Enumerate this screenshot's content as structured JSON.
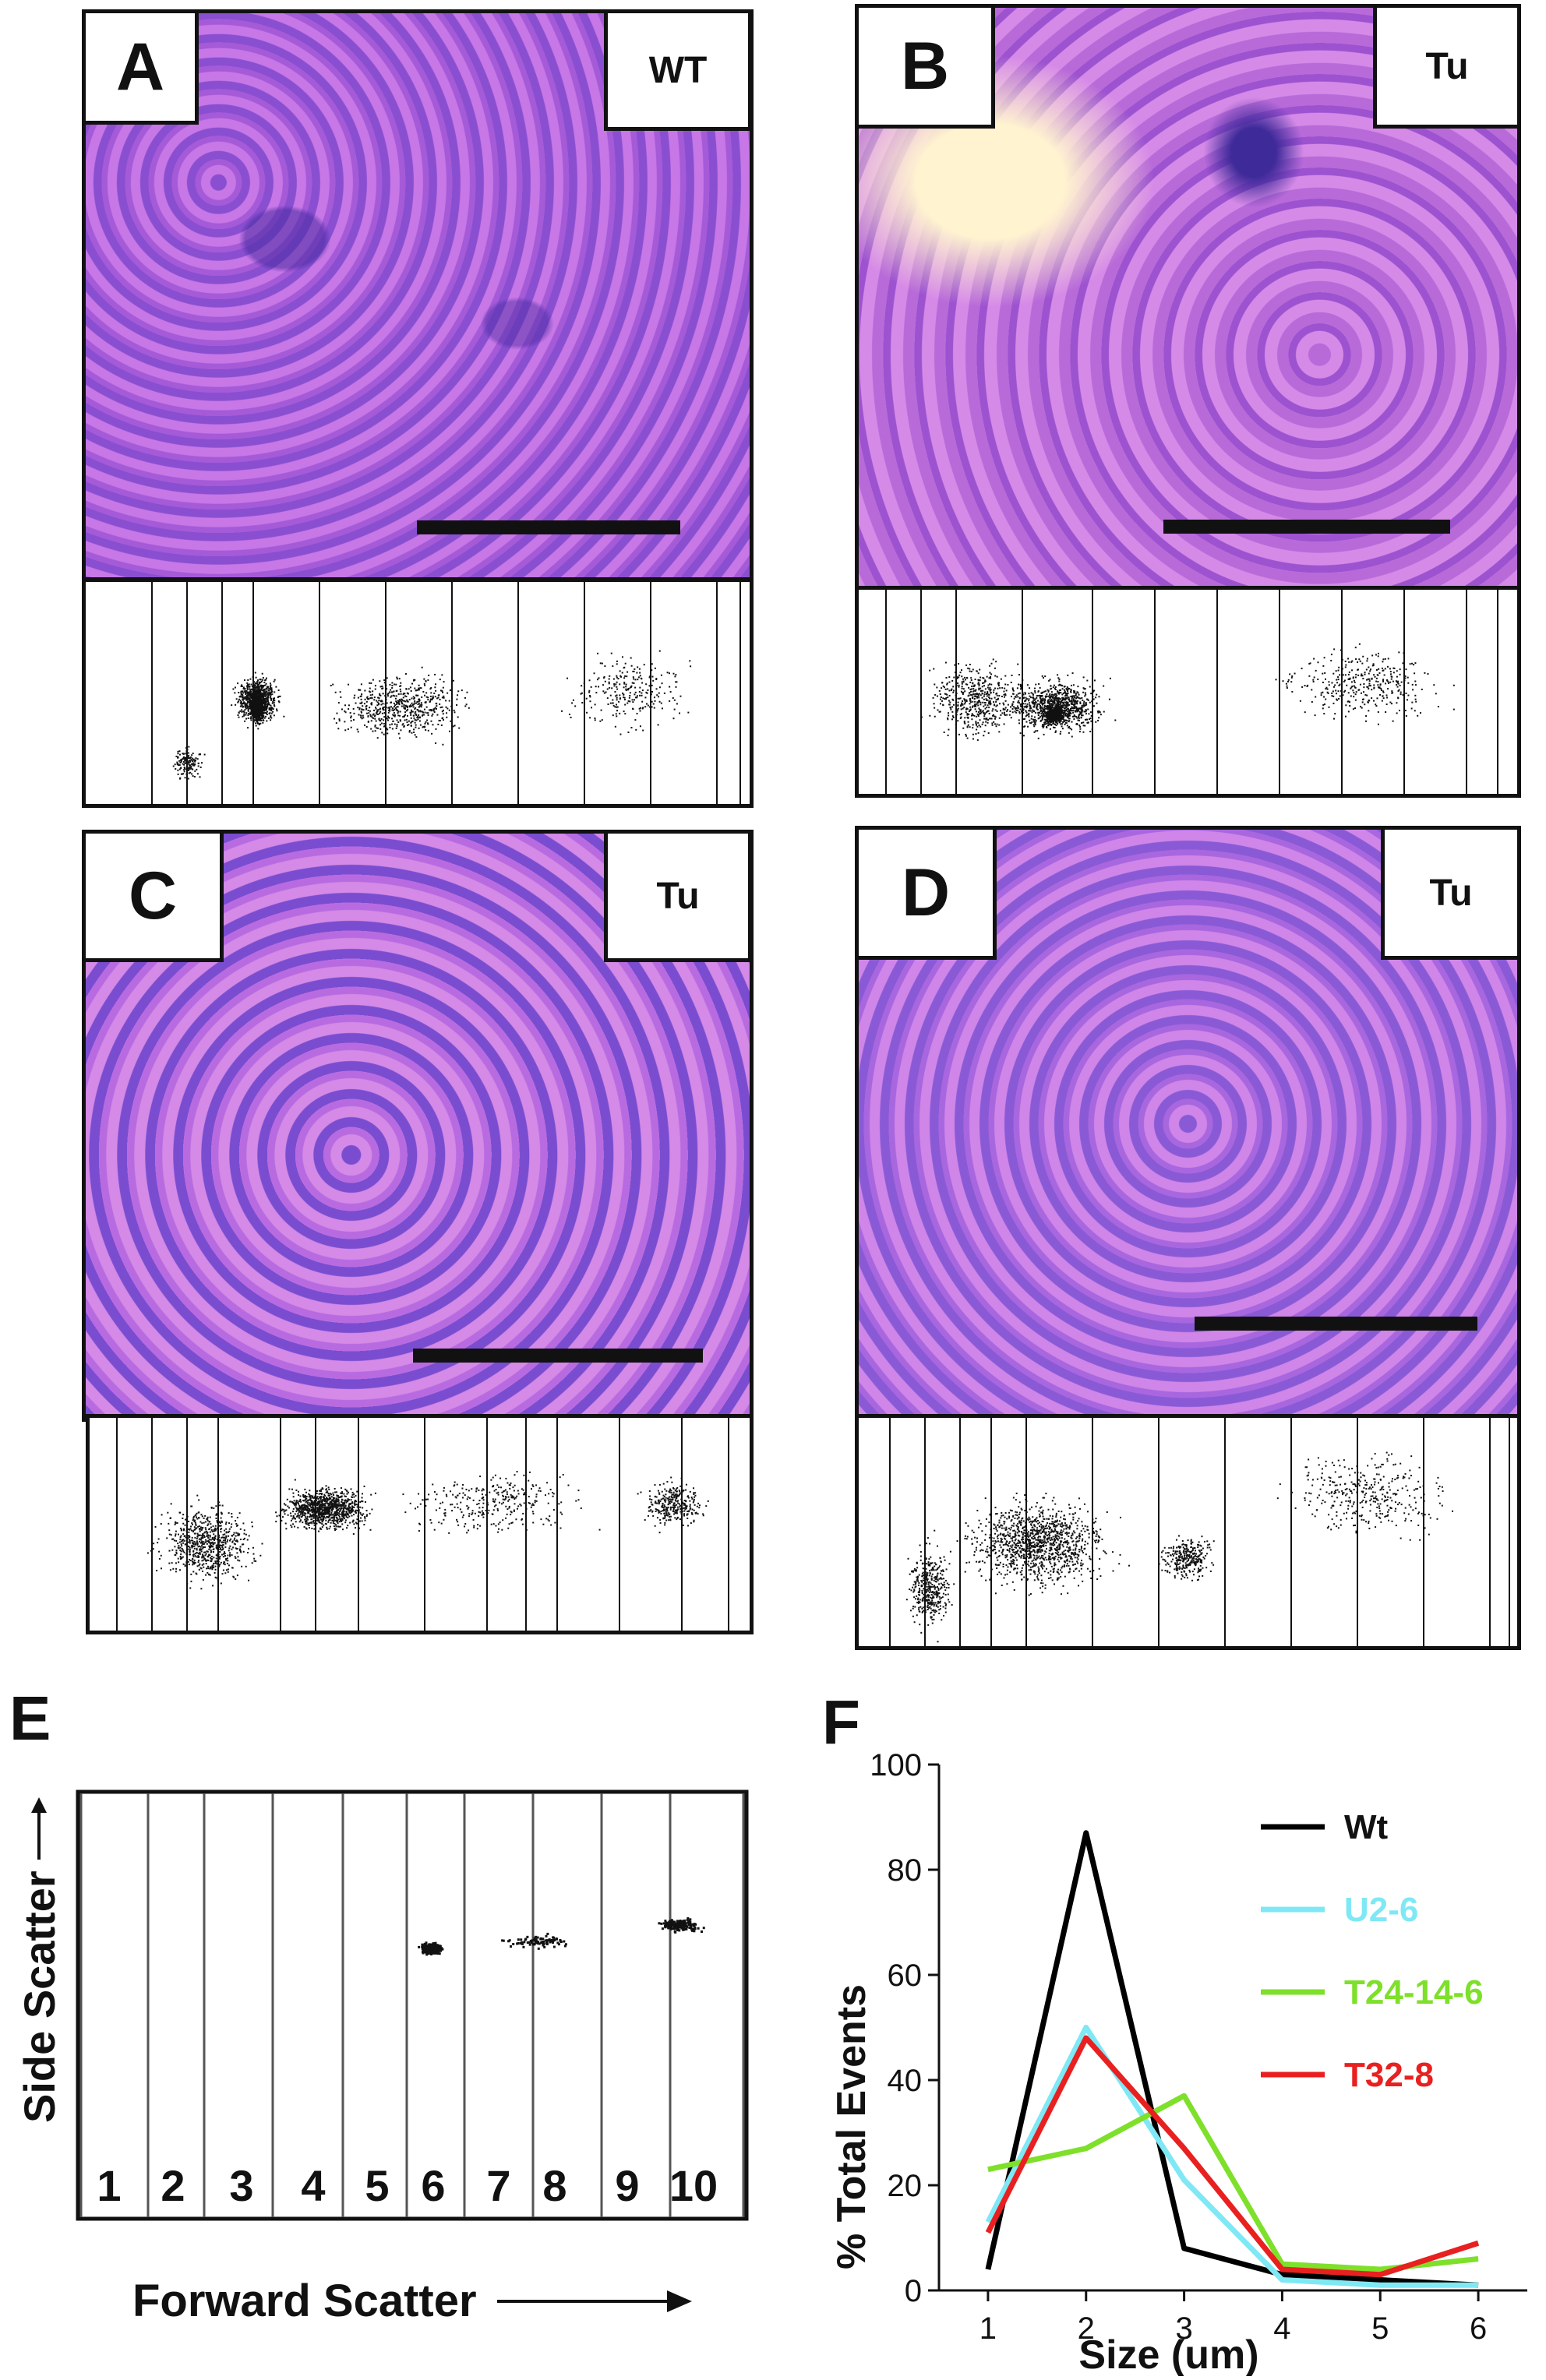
{
  "panels": [
    {
      "letter": "A",
      "tag": "WT"
    },
    {
      "letter": "B",
      "tag": "Tu"
    },
    {
      "letter": "C",
      "tag": "Tu"
    },
    {
      "letter": "D",
      "tag": "Tu"
    }
  ],
  "panel_e": {
    "letter": "E",
    "gates": [
      "1",
      "2",
      "3",
      "4",
      "5",
      "6",
      "7",
      "8",
      "9",
      "10"
    ],
    "xlabel": "Forward Scatter",
    "ylabel": "Side Scatter"
  },
  "panel_f": {
    "letter": "F"
  },
  "chart_data": {
    "type": "line",
    "x": [
      1,
      2,
      3,
      4,
      5,
      6
    ],
    "xlabel": "Size (um)",
    "ylabel": "% Total Events",
    "ylim": [
      0,
      100
    ],
    "yticks": [
      0,
      20,
      40,
      60,
      80,
      100
    ],
    "legend_position": "top-right",
    "grid": false,
    "series": [
      {
        "name": "Wt",
        "color": "#000000",
        "values": [
          4,
          87,
          8,
          3,
          2,
          1
        ]
      },
      {
        "name": "U2-6",
        "color": "#7fe8f5",
        "values": [
          13,
          50,
          21,
          2,
          1,
          1
        ]
      },
      {
        "name": "T24-14-6",
        "color": "#7ee02a",
        "values": [
          23,
          27,
          37,
          5,
          4,
          6
        ]
      },
      {
        "name": "T32-8",
        "color": "#e82020",
        "values": [
          11,
          48,
          27,
          4,
          3,
          9
        ]
      }
    ]
  }
}
